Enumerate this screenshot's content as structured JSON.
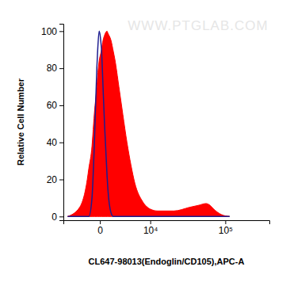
{
  "chart_data": {
    "type": "area",
    "x_label": "CL647-98013(Endoglin/CD105),APC-A",
    "y_label": "Relative Cell Number",
    "annotations": [
      "WWW.PTGLAB.COM"
    ],
    "log": "x",
    "grid": false,
    "xlim": [
      -5800,
      340000
    ],
    "ylim": [
      -2,
      104
    ],
    "xticks": [
      0,
      {
        "value": 10000,
        "label": "10⁴"
      },
      {
        "value": 100000,
        "label": "10⁵"
      }
    ],
    "yticks": [
      0,
      20,
      40,
      60,
      80,
      100
    ],
    "x": [
      -4800,
      -2500,
      -1400,
      -1200,
      -820,
      -640,
      -550,
      -300,
      -230,
      -70,
      75,
      150,
      300,
      470,
      550,
      730,
      820,
      1200,
      1500,
      1700,
      2300,
      2950,
      3700,
      4500,
      5400,
      7500,
      10000,
      13000,
      22000,
      36000,
      46000,
      58000,
      65000,
      72000,
      90000,
      113000
    ],
    "series": [
      {
        "type": "area",
        "color": "#ff0000",
        "values": [
          0,
          5,
          20,
          26,
          38,
          50,
          56,
          70,
          75,
          84,
          88,
          90,
          95,
          98,
          99,
          100,
          99,
          95,
          89,
          85,
          70,
          55,
          40,
          28,
          18,
          8,
          4,
          3,
          3,
          5,
          6,
          7,
          6,
          4,
          1,
          0
        ]
      },
      {
        "type": "line",
        "color": "#1c1c8f",
        "values": [
          0,
          0,
          0,
          0,
          10,
          28,
          40,
          80,
          88,
          100,
          95,
          90,
          70,
          48,
          40,
          22,
          15,
          2,
          0,
          0,
          0,
          0,
          0,
          0,
          0,
          0,
          0,
          0,
          0,
          0,
          0,
          0,
          0,
          0,
          0,
          0
        ]
      }
    ]
  }
}
